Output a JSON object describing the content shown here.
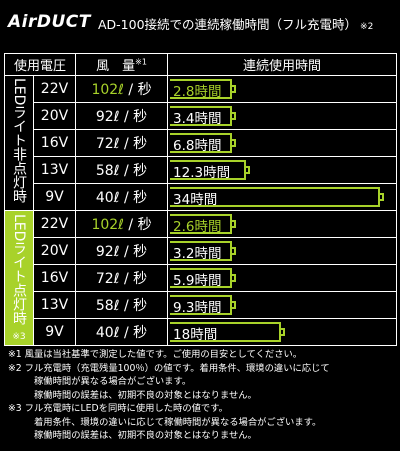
{
  "header": {
    "logo": "AirDUCT",
    "title": "AD-100接続での連続稼働時間（フル充電時）",
    "title_note": "※2"
  },
  "table": {
    "col_voltage": "使用電圧",
    "col_flow": "風　量",
    "col_flow_note": "※1",
    "col_time": "連続使用時間",
    "group_off_label": "LEDライト非点灯時",
    "group_on_label": "LEDライト点灯時",
    "group_on_note": "※3",
    "off_rows": [
      {
        "voltage": "22V",
        "flow": "102ℓ",
        "unit": "/ 秒",
        "time": "2.8時間",
        "hours": 2.8,
        "highlight": true
      },
      {
        "voltage": "20V",
        "flow": "92ℓ",
        "unit": "/ 秒",
        "time": "3.4時間",
        "hours": 3.4,
        "highlight": false
      },
      {
        "voltage": "16V",
        "flow": "72ℓ",
        "unit": "/ 秒",
        "time": "6.8時間",
        "hours": 6.8,
        "highlight": false
      },
      {
        "voltage": "13V",
        "flow": "58ℓ",
        "unit": "/ 秒",
        "time": "12.3時間",
        "hours": 12.3,
        "highlight": false
      },
      {
        "voltage": "9V",
        "flow": "40ℓ",
        "unit": "/ 秒",
        "time": "34時間",
        "hours": 34,
        "highlight": false
      }
    ],
    "on_rows": [
      {
        "voltage": "22V",
        "flow": "102ℓ",
        "unit": "/ 秒",
        "time": "2.6時間",
        "hours": 2.6,
        "highlight": true
      },
      {
        "voltage": "20V",
        "flow": "92ℓ",
        "unit": "/ 秒",
        "time": "3.2時間",
        "hours": 3.2,
        "highlight": false
      },
      {
        "voltage": "16V",
        "flow": "72ℓ",
        "unit": "/ 秒",
        "time": "5.9時間",
        "hours": 5.9,
        "highlight": false
      },
      {
        "voltage": "13V",
        "flow": "58ℓ",
        "unit": "/ 秒",
        "time": "9.3時間",
        "hours": 9.3,
        "highlight": false
      },
      {
        "voltage": "9V",
        "flow": "40ℓ",
        "unit": "/ 秒",
        "time": "18時間",
        "hours": 18,
        "highlight": false
      }
    ]
  },
  "notes": [
    {
      "text": "※1 風量は当社基準で測定した値です。ご使用の目安としてください。",
      "indent": false
    },
    {
      "text": "※2 フル充電時（充電残量100％）の値です。着用条件、環境の違いに応じて",
      "indent": false
    },
    {
      "text": "稼働時間が異なる場合がございます。",
      "indent": true
    },
    {
      "text": "稼働時間の誤差は、初期不良の対象とはなりません。",
      "indent": true
    },
    {
      "text": "※3 フル充電時にLEDを同時に使用した時の値です。",
      "indent": false
    },
    {
      "text": "着用条件、環境の違いに応じて稼働時間が異なる場合がございます。",
      "indent": true
    },
    {
      "text": "稼働時間の誤差は、初期不良の対象とはなりません。",
      "indent": true
    }
  ],
  "colors": {
    "accent": "#a8d22a",
    "background": "#000000",
    "text": "#ffffff"
  }
}
